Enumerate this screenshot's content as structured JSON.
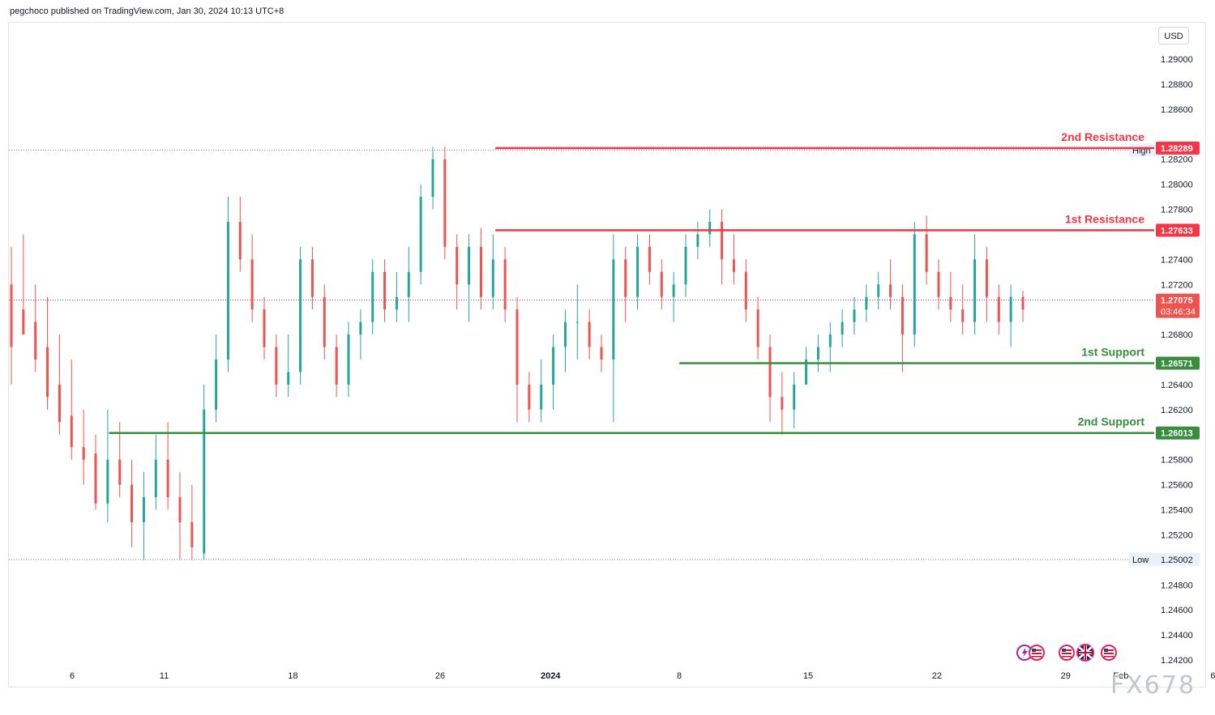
{
  "header": {
    "text": "pegchoco published on TradingView.com, Jan 30, 2024 10:13 UTC+8"
  },
  "currency": "USD",
  "watermark": "FX678",
  "colors": {
    "up": "#26a69a",
    "down": "#ef5350",
    "resistance": "#f23645",
    "support": "#388e3c",
    "grid": "#e0e3eb",
    "text": "#131722"
  },
  "chart_data": {
    "type": "candlestick",
    "symbol_quote": "USD",
    "ylim": [
      1.242,
      1.291
    ],
    "y_ticks": [
      "1.29000",
      "1.28800",
      "1.28600",
      "1.28200",
      "1.28000",
      "1.27800",
      "1.27400",
      "1.27200",
      "1.26800",
      "1.26400",
      "1.26200",
      "1.25800",
      "1.25600",
      "1.25400",
      "1.25200",
      "1.24800",
      "1.24600",
      "1.24400",
      "1.24200"
    ],
    "x_ticks": [
      {
        "label": "6",
        "date": "2023-12-06"
      },
      {
        "label": "11",
        "date": "2023-12-11"
      },
      {
        "label": "18",
        "date": "2023-12-18"
      },
      {
        "label": "26",
        "date": "2023-12-26"
      },
      {
        "label": "2024",
        "date": "2024-01-01",
        "bold": true
      },
      {
        "label": "8",
        "date": "2024-01-08"
      },
      {
        "label": "15",
        "date": "2024-01-15"
      },
      {
        "label": "22",
        "date": "2024-01-22"
      },
      {
        "label": "29",
        "date": "2024-01-29"
      },
      {
        "label": "Feb",
        "date": "2024-02-01"
      },
      {
        "label": "6",
        "date": "2024-02-06"
      }
    ],
    "levels": [
      {
        "label": "2nd Resistance",
        "value": 1.28289,
        "value_label": "1.28289",
        "kind": "resistance",
        "start_date": "2023-12-29"
      },
      {
        "label": "1st Resistance",
        "value": 1.27633,
        "value_label": "1.27633",
        "kind": "resistance",
        "start_date": "2023-12-29"
      },
      {
        "label": "1st Support",
        "value": 1.26571,
        "value_label": "1.26571",
        "kind": "support",
        "start_date": "2024-01-08"
      },
      {
        "label": "2nd Support",
        "value": 1.26013,
        "value_label": "1.26013",
        "kind": "support",
        "start_date": "2023-12-08"
      }
    ],
    "high": {
      "label": "High",
      "value": 1.28273,
      "value_label": "1.28273"
    },
    "low": {
      "label": "Low",
      "value": 1.25002,
      "value_label": "1.25002"
    },
    "last": {
      "value": 1.27075,
      "value_label": "1.27075",
      "countdown": "03:46:34"
    },
    "candles": [
      [
        1.272,
        1.275,
        1.267,
        1.264
      ],
      [
        1.27,
        1.276,
        1.268,
        1.269
      ],
      [
        1.269,
        1.272,
        1.266,
        1.265
      ],
      [
        1.267,
        1.271,
        1.263,
        1.262
      ],
      [
        1.264,
        1.268,
        1.261,
        1.26
      ],
      [
        1.2615,
        1.266,
        1.259,
        1.258
      ],
      [
        1.259,
        1.262,
        1.258,
        1.256
      ],
      [
        1.2585,
        1.26,
        1.2545,
        1.254
      ],
      [
        1.2545,
        1.262,
        1.258,
        1.253
      ],
      [
        1.258,
        1.261,
        1.256,
        1.255
      ],
      [
        1.256,
        1.258,
        1.253,
        1.251
      ],
      [
        1.253,
        1.257,
        1.255,
        1.25
      ],
      [
        1.255,
        1.26,
        1.258,
        1.254
      ],
      [
        1.258,
        1.261,
        1.255,
        1.254
      ],
      [
        1.255,
        1.257,
        1.253,
        1.25
      ],
      [
        1.253,
        1.256,
        1.251,
        1.25
      ],
      [
        1.2505,
        1.264,
        1.262,
        1.25
      ],
      [
        1.262,
        1.268,
        1.266,
        1.261
      ],
      [
        1.266,
        1.279,
        1.277,
        1.265
      ],
      [
        1.277,
        1.279,
        1.274,
        1.273
      ],
      [
        1.274,
        1.276,
        1.27,
        1.269
      ],
      [
        1.27,
        1.271,
        1.267,
        1.266
      ],
      [
        1.267,
        1.268,
        1.264,
        1.263
      ],
      [
        1.264,
        1.268,
        1.265,
        1.263
      ],
      [
        1.265,
        1.275,
        1.274,
        1.264
      ],
      [
        1.274,
        1.275,
        1.271,
        1.27
      ],
      [
        1.271,
        1.272,
        1.267,
        1.266
      ],
      [
        1.267,
        1.268,
        1.264,
        1.263
      ],
      [
        1.264,
        1.269,
        1.268,
        1.263
      ],
      [
        1.268,
        1.27,
        1.269,
        1.266
      ],
      [
        1.269,
        1.274,
        1.273,
        1.268
      ],
      [
        1.273,
        1.274,
        1.27,
        1.269
      ],
      [
        1.27,
        1.273,
        1.271,
        1.269
      ],
      [
        1.271,
        1.275,
        1.273,
        1.269
      ],
      [
        1.273,
        1.28,
        1.279,
        1.272
      ],
      [
        1.279,
        1.283,
        1.282,
        1.278
      ],
      [
        1.282,
        1.283,
        1.275,
        1.274
      ],
      [
        1.275,
        1.276,
        1.272,
        1.27
      ],
      [
        1.272,
        1.276,
        1.275,
        1.269
      ],
      [
        1.275,
        1.2765,
        1.271,
        1.27
      ],
      [
        1.271,
        1.276,
        1.274,
        1.27
      ],
      [
        1.274,
        1.275,
        1.27,
        1.269
      ],
      [
        1.27,
        1.271,
        1.264,
        1.261
      ],
      [
        1.264,
        1.265,
        1.262,
        1.261
      ],
      [
        1.262,
        1.266,
        1.264,
        1.261
      ],
      [
        1.264,
        1.268,
        1.267,
        1.262
      ],
      [
        1.267,
        1.27,
        1.269,
        1.265
      ],
      [
        1.269,
        1.272,
        1.269,
        1.266
      ],
      [
        1.269,
        1.27,
        1.267,
        1.266
      ],
      [
        1.267,
        1.268,
        1.266,
        1.265
      ],
      [
        1.266,
        1.276,
        1.274,
        1.261
      ],
      [
        1.274,
        1.275,
        1.271,
        1.269
      ],
      [
        1.271,
        1.276,
        1.275,
        1.27
      ],
      [
        1.275,
        1.276,
        1.273,
        1.272
      ],
      [
        1.273,
        1.274,
        1.271,
        1.27
      ],
      [
        1.271,
        1.273,
        1.272,
        1.269
      ],
      [
        1.272,
        1.276,
        1.275,
        1.271
      ],
      [
        1.275,
        1.277,
        1.276,
        1.274
      ],
      [
        1.276,
        1.278,
        1.277,
        1.275
      ],
      [
        1.277,
        1.278,
        1.274,
        1.272
      ],
      [
        1.274,
        1.276,
        1.273,
        1.272
      ],
      [
        1.273,
        1.274,
        1.27,
        1.269
      ],
      [
        1.27,
        1.271,
        1.267,
        1.266
      ],
      [
        1.267,
        1.268,
        1.263,
        1.261
      ],
      [
        1.263,
        1.265,
        1.262,
        1.26
      ],
      [
        1.262,
        1.265,
        1.264,
        1.2605
      ],
      [
        1.264,
        1.267,
        1.266,
        1.264
      ],
      [
        1.266,
        1.268,
        1.267,
        1.265
      ],
      [
        1.267,
        1.269,
        1.268,
        1.265
      ],
      [
        1.268,
        1.27,
        1.269,
        1.267
      ],
      [
        1.269,
        1.271,
        1.27,
        1.268
      ],
      [
        1.27,
        1.272,
        1.271,
        1.269
      ],
      [
        1.271,
        1.273,
        1.272,
        1.27
      ],
      [
        1.272,
        1.274,
        1.271,
        1.27
      ],
      [
        1.271,
        1.272,
        1.268,
        1.265
      ],
      [
        1.268,
        1.277,
        1.276,
        1.267
      ],
      [
        1.276,
        1.2775,
        1.273,
        1.272
      ],
      [
        1.273,
        1.274,
        1.271,
        1.27
      ],
      [
        1.271,
        1.273,
        1.27,
        1.269
      ],
      [
        1.27,
        1.272,
        1.269,
        1.268
      ],
      [
        1.269,
        1.276,
        1.274,
        1.268
      ],
      [
        1.274,
        1.275,
        1.271,
        1.269
      ],
      [
        1.271,
        1.272,
        1.269,
        1.268
      ],
      [
        1.269,
        1.272,
        1.271,
        1.267
      ],
      [
        1.271,
        1.2715,
        1.27,
        1.269
      ]
    ]
  }
}
